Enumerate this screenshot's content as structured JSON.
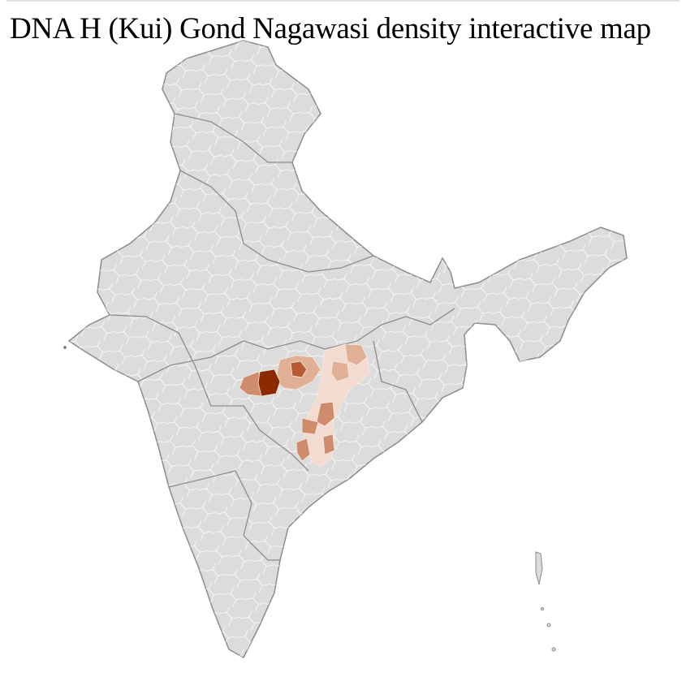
{
  "title": "DNA H (Kui) Gond Nagawasi density interactive map",
  "map": {
    "region": "India",
    "base_color": "#dcdcdc",
    "boundary_color": "#ffffff",
    "state_border_color": "#8c8c8c",
    "density_colors": [
      "#f3dccf",
      "#dfb096",
      "#cf8c6c",
      "#b85a36",
      "#8b2a00"
    ]
  }
}
